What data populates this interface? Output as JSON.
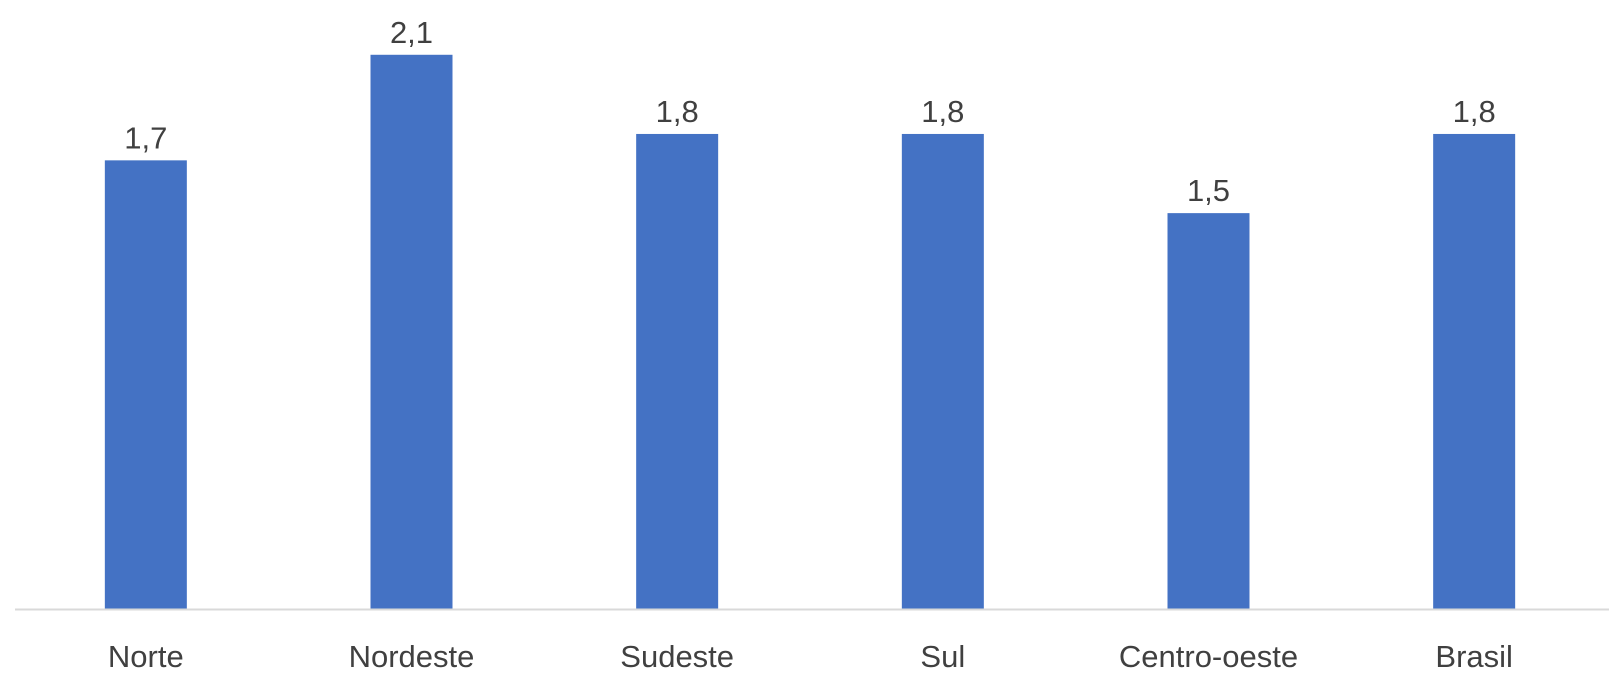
{
  "chart_data": {
    "type": "bar",
    "categories": [
      "Norte",
      "Nordeste",
      "Sudeste",
      "Sul",
      "Centro-oeste",
      "Brasil"
    ],
    "values": [
      1.7,
      2.1,
      1.8,
      1.8,
      1.5,
      1.8
    ],
    "value_labels": [
      "1,7",
      "2,1",
      "1,8",
      "1,8",
      "1,5",
      "1,8"
    ],
    "title": "",
    "xlabel": "",
    "ylabel": "",
    "ylim": [
      0,
      2.3
    ],
    "grid": false,
    "legend": "none",
    "bar_color": "#4472C4",
    "axis_color": "#D9D9D9",
    "text_color": "#404040"
  }
}
